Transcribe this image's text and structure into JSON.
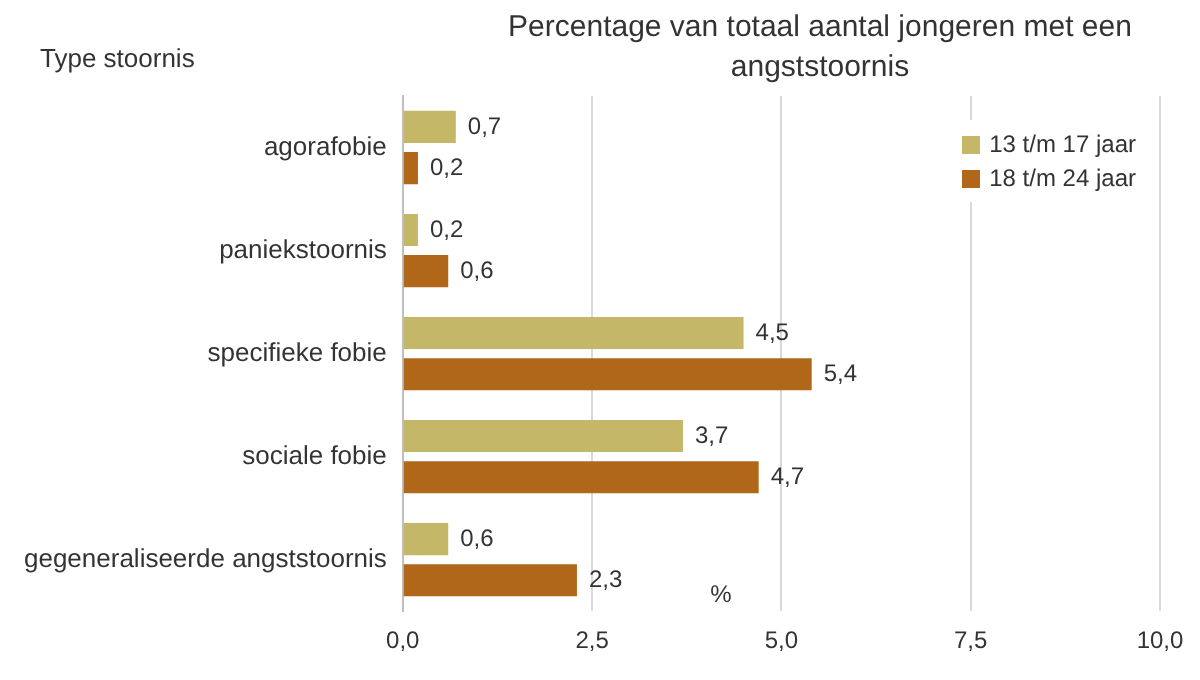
{
  "chart_data": {
    "type": "bar",
    "orientation": "horizontal",
    "title": "Percentage van totaal aantal jongeren met een angststoornis",
    "ylabel": "Type stoornis",
    "xlabel": "%",
    "categories": [
      "agorafobie",
      "paniekstoornis",
      "specifieke fobie",
      "sociale fobie",
      "gegeneraliseerde angststoornis"
    ],
    "series": [
      {
        "name": "13 t/m 17 jaar",
        "color": "#c4b767",
        "values": [
          0.7,
          0.2,
          4.5,
          3.7,
          0.6
        ],
        "value_labels": [
          "0,7",
          "0,2",
          "4,5",
          "3,7",
          "0,6"
        ]
      },
      {
        "name": "18 t/m 24 jaar",
        "color": "#b0671a",
        "values": [
          0.2,
          0.6,
          5.4,
          4.7,
          2.3
        ],
        "value_labels": [
          "0,2",
          "0,6",
          "5,4",
          "4,7",
          "2,3"
        ]
      }
    ],
    "xlim": [
      0,
      10
    ],
    "xticks": [
      {
        "value": 0,
        "label": "0,0"
      },
      {
        "value": 2.5,
        "label": "2,5"
      },
      {
        "value": 5,
        "label": "5,0"
      },
      {
        "value": 7.5,
        "label": "7,5"
      },
      {
        "value": 10,
        "label": "10,0"
      }
    ],
    "grid": "x",
    "legend": "top right"
  }
}
